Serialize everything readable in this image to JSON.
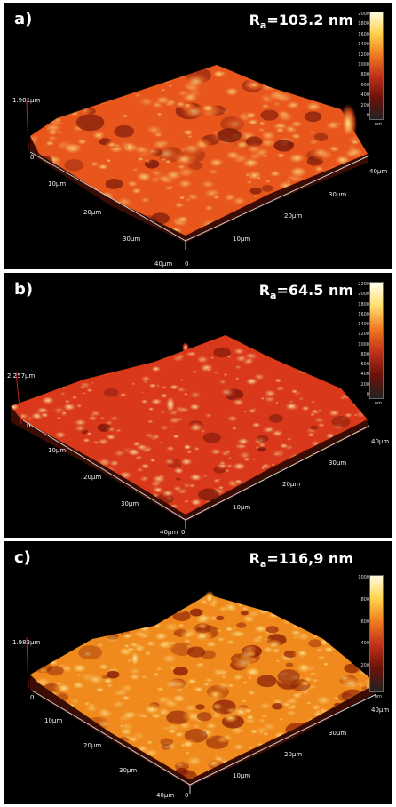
{
  "panels": [
    {
      "label": "a)",
      "ra_symbol": "R",
      "ra_sub": "a",
      "ra_value": "=103.2 nm",
      "z_height": "1.981µm",
      "scale_ticks": [
        "2000",
        "1800",
        "1600",
        "1400",
        "1200",
        "1000",
        "800",
        "600",
        "400",
        "200",
        "0"
      ],
      "unit": "nm",
      "axis_left": [
        "0",
        "10µm",
        "20µm",
        "30µm",
        "40µm"
      ],
      "axis_right": [
        "0",
        "10µm",
        "20µm",
        "30µm",
        "40µm"
      ],
      "colors": {
        "base": "#e8561c",
        "peak": "#ffe98a",
        "valley": "#7a1a0a"
      }
    },
    {
      "label": "b)",
      "ra_symbol": "R",
      "ra_sub": "a",
      "ra_value": "=64.5 nm",
      "z_height": "2.257µm",
      "scale_ticks": [
        "2200",
        "2000",
        "1800",
        "1600",
        "1400",
        "1200",
        "1000",
        "800",
        "600",
        "400",
        "200",
        "0"
      ],
      "unit": "nm",
      "axis_left": [
        "0",
        "10µm",
        "20µm",
        "30µm",
        "40µm"
      ],
      "axis_right": [
        "0",
        "10µm",
        "20µm",
        "30µm",
        "40µm"
      ],
      "colors": {
        "base": "#d9391a",
        "peak": "#fff4b0",
        "valley": "#6d1408"
      }
    },
    {
      "label": "c)",
      "ra_symbol": "R",
      "ra_sub": "a",
      "ra_value": "=116,9 nm",
      "z_height": "1.983µm",
      "scale_ticks": [
        "1000",
        "800",
        "600",
        "400",
        "200",
        "0"
      ],
      "unit": "nm",
      "axis_left": [
        "0",
        "10µm",
        "20µm",
        "30µm",
        "40µm"
      ],
      "axis_right": [
        "0",
        "10µm",
        "20µm",
        "30µm",
        "40µm"
      ],
      "colors": {
        "base": "#f08a1c",
        "peak": "#fff2a0",
        "valley": "#8a1e08"
      }
    }
  ]
}
